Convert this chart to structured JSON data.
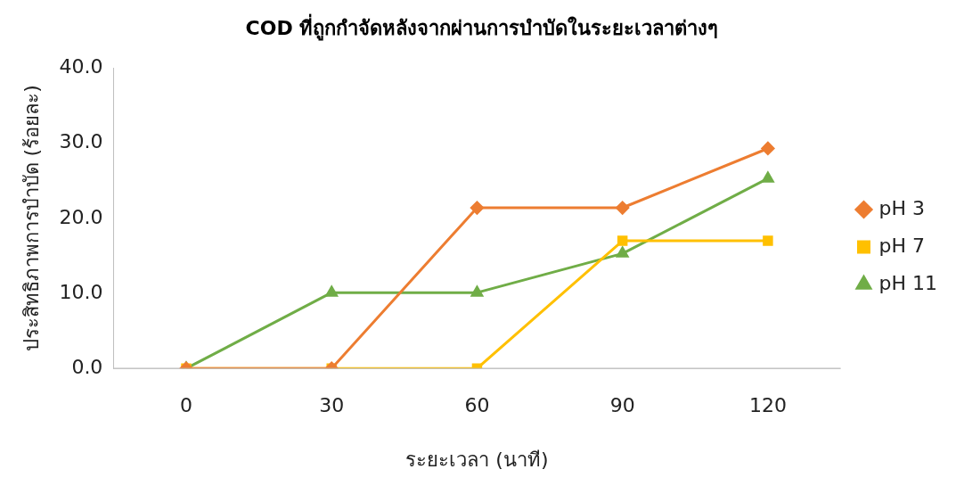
{
  "chart_data": {
    "type": "line",
    "title": "COD ที่ถูกกำจัดหลังจากผ่านการบำบัดในระยะเวลาต่างๆ",
    "xlabel": "ระยะเวลา (นาที)",
    "ylabel": "ประสิทธิภาพการบำบัด (ร้อยละ)",
    "categories": [
      "0",
      "30",
      "60",
      "90",
      "120"
    ],
    "series": [
      {
        "name": "pH 3",
        "color": "#ed7d31",
        "marker": "diamond",
        "values": [
          0,
          0,
          21.4,
          21.4,
          29.3
        ]
      },
      {
        "name": "pH 7",
        "color": "#ffc000",
        "marker": "square",
        "values": [
          0,
          0,
          0,
          17.0,
          17.0
        ]
      },
      {
        "name": "pH 11",
        "color": "#70ad47",
        "marker": "triangle",
        "values": [
          0,
          10.1,
          10.1,
          15.3,
          25.3
        ]
      }
    ],
    "ylim": [
      0,
      40
    ],
    "yticks": [
      {
        "value": 0,
        "label": "0.0"
      },
      {
        "value": 10,
        "label": "10.0"
      },
      {
        "value": 20,
        "label": "20.0"
      },
      {
        "value": 30,
        "label": "30.0"
      },
      {
        "value": 40,
        "label": "40.0"
      }
    ],
    "grid": false,
    "legend": "right",
    "line_style": "solid"
  }
}
